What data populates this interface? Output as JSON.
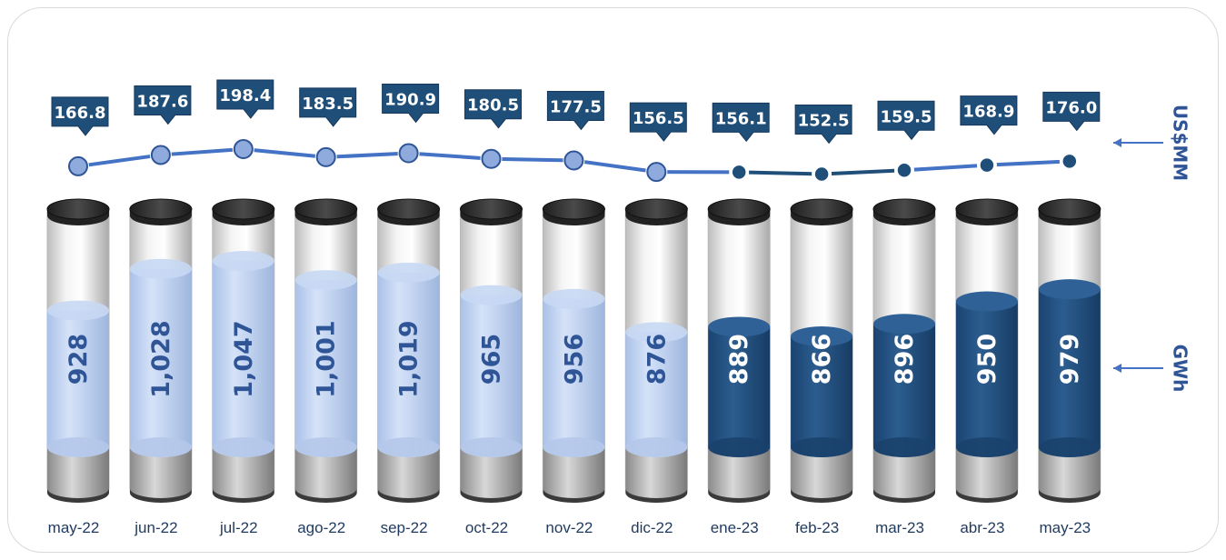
{
  "chart_data": {
    "type": "bar",
    "categories": [
      "may-22",
      "jun-22",
      "jul-22",
      "ago-22",
      "sep-22",
      "oct-22",
      "nov-22",
      "dic-22",
      "ene-23",
      "feb-23",
      "mar-23",
      "abr-23",
      "may-23"
    ],
    "series": [
      {
        "name": "GWh",
        "type": "bar",
        "values": [
          928,
          1028,
          1047,
          1001,
          1019,
          965,
          956,
          876,
          889,
          866,
          896,
          950,
          979
        ],
        "labels": [
          "928",
          "1,028",
          "1,047",
          "1,001",
          "1,019",
          "965",
          "956",
          "876",
          "889",
          "866",
          "896",
          "950",
          "979"
        ]
      },
      {
        "name": "US$MM",
        "type": "line",
        "values": [
          166.8,
          187.6,
          198.4,
          183.5,
          190.9,
          180.5,
          177.5,
          156.5,
          156.1,
          152.5,
          159.5,
          168.9,
          176.0
        ],
        "labels": [
          "166.8",
          "187.6",
          "198.4",
          "183.5",
          "190.9",
          "180.5",
          "177.5",
          "156.5",
          "156.1",
          "152.5",
          "159.5",
          "168.9",
          "176.0"
        ]
      }
    ],
    "units": {
      "bars": "GWh",
      "line": "US$MM"
    },
    "colors": {
      "light_fill": "#c3d5f3",
      "dark_fill": "#1f4e79",
      "line": "#4472c4",
      "callout": "#1f4e79",
      "marker_light": "#8faadc",
      "marker_dark": "#1f4e79",
      "light_text": "#2f5597",
      "dark_text": "#ffffff"
    },
    "highlight_start_index": 8
  }
}
